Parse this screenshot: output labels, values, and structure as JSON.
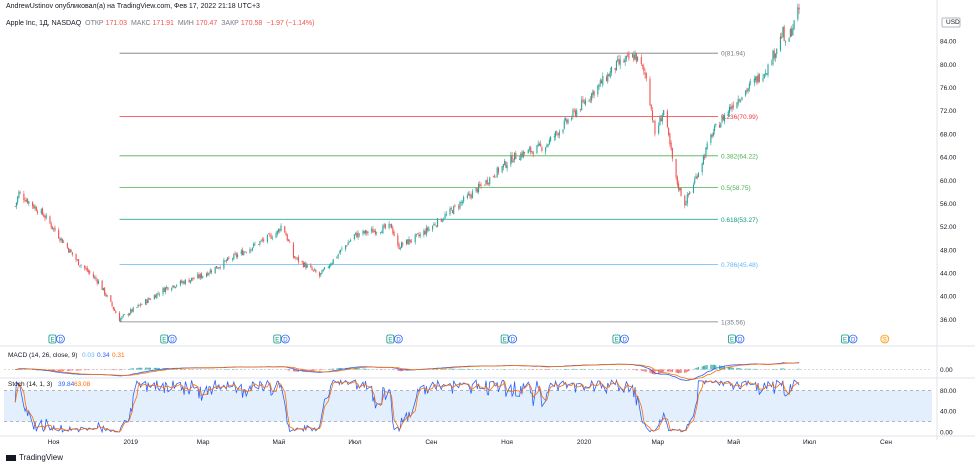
{
  "header": {
    "publisher": "AndrewUstinov опубликовал(а) на TradingView.com, Фев 17, 2022 21:18 UTC+3",
    "symbol_line": "Apple Inc, 1Д, NASDAQ",
    "open_label": "ОТКР",
    "open_value": "171.03",
    "high_label": "МАКС",
    "high_value": "171.91",
    "low_label": "МИН",
    "low_value": "170.47",
    "close_label": "ЗАКР",
    "close_value": "170.58",
    "change": "−1.97 (−1.14%)"
  },
  "branding": "TradingView",
  "colors": {
    "up": "#26a69a",
    "down": "#ef5350",
    "macd": "#2962ff",
    "signal": "#ff6d00",
    "stoch_k": "#2962ff",
    "stoch_d": "#ff6d00",
    "stoch_band": "#e3effd"
  },
  "chart_data": [
    {
      "type": "candlestick",
      "title": "Apple Inc, 1Д, NASDAQ",
      "currency": "USD",
      "y_ticks": [
        "36.00",
        "40.00",
        "44.00",
        "48.00",
        "52.00",
        "56.00",
        "60.00",
        "64.00",
        "68.00",
        "72.00",
        "76.00",
        "80.00",
        "84.00"
      ],
      "ylim": [
        34.5,
        88.7
      ],
      "x_ticks": [
        "Ноя",
        "2019",
        "Мар",
        "Май",
        "Июл",
        "Сен",
        "Ноя",
        "2020",
        "Мар",
        "Май",
        "Июл",
        "Сен"
      ],
      "price_anchors": [
        {
          "date": "2018-10-01",
          "price": 55.5
        },
        {
          "date": "2018-10-04",
          "price": 57.8
        },
        {
          "date": "2018-10-24",
          "price": 54.0
        },
        {
          "date": "2018-11-20",
          "price": 46.0
        },
        {
          "date": "2018-12-07",
          "price": 42.5
        },
        {
          "date": "2018-12-24",
          "price": 36.0
        },
        {
          "date": "2019-01-03",
          "price": 37.5
        },
        {
          "date": "2019-01-31",
          "price": 41.5
        },
        {
          "date": "2019-02-28",
          "price": 43.5
        },
        {
          "date": "2019-03-28",
          "price": 47.0
        },
        {
          "date": "2019-04-30",
          "price": 51.0
        },
        {
          "date": "2019-05-04",
          "price": 52.5
        },
        {
          "date": "2019-05-13",
          "price": 46.8
        },
        {
          "date": "2019-06-03",
          "price": 43.5
        },
        {
          "date": "2019-07-01",
          "price": 50.5
        },
        {
          "date": "2019-07-31",
          "price": 52.0
        },
        {
          "date": "2019-08-05",
          "price": 48.5
        },
        {
          "date": "2019-08-23",
          "price": 50.5
        },
        {
          "date": "2019-09-13",
          "price": 54.0
        },
        {
          "date": "2019-10-11",
          "price": 59.0
        },
        {
          "date": "2019-11-06",
          "price": 64.0
        },
        {
          "date": "2019-12-02",
          "price": 66.0
        },
        {
          "date": "2019-12-31",
          "price": 73.0
        },
        {
          "date": "2020-01-29",
          "price": 80.0
        },
        {
          "date": "2020-02-12",
          "price": 81.5
        },
        {
          "date": "2020-02-21",
          "price": 78.0
        },
        {
          "date": "2020-02-28",
          "price": 68.0
        },
        {
          "date": "2020-03-06",
          "price": 72.0
        },
        {
          "date": "2020-03-16",
          "price": 60.0
        },
        {
          "date": "2020-03-23",
          "price": 56.0
        },
        {
          "date": "2020-04-01",
          "price": 60.5
        },
        {
          "date": "2020-04-14",
          "price": 68.0
        },
        {
          "date": "2020-04-30",
          "price": 73.0
        },
        {
          "date": "2020-05-29",
          "price": 79.5
        },
        {
          "date": "2020-06-10",
          "price": 85.5
        },
        {
          "date": "2020-06-12",
          "price": 83.0
        },
        {
          "date": "2020-06-24",
          "price": 90.0
        }
      ],
      "fibonacci": [
        {
          "label": "0(81.94)",
          "price": 81.94,
          "color": "#787b86"
        },
        {
          "label": "0.236(70.99)",
          "price": 70.99,
          "color": "#f23645"
        },
        {
          "label": "0.382(64.22)",
          "price": 64.22,
          "color": "#4caf50"
        },
        {
          "label": "0.5(58.75)",
          "price": 58.75,
          "color": "#4caf50"
        },
        {
          "label": "0.618(53.27)",
          "price": 53.27,
          "color": "#089981"
        },
        {
          "label": "0.786(45.48)",
          "price": 45.48,
          "color": "#64b5f6"
        },
        {
          "label": "1(35.56)",
          "price": 35.56,
          "color": "#787b86"
        }
      ],
      "fib_start_date": "2018-12-24",
      "events": [
        {
          "date": "2018-10-31",
          "markers": [
            "E",
            "D"
          ]
        },
        {
          "date": "2019-01-29",
          "markers": [
            "E",
            "D"
          ]
        },
        {
          "date": "2019-04-30",
          "markers": [
            "E",
            "D"
          ]
        },
        {
          "date": "2019-07-30",
          "markers": [
            "E",
            "D"
          ]
        },
        {
          "date": "2019-10-30",
          "markers": [
            "E",
            "D"
          ]
        },
        {
          "date": "2020-01-28",
          "markers": [
            "E",
            "D"
          ]
        },
        {
          "date": "2020-04-30",
          "markers": [
            "E",
            "D"
          ]
        },
        {
          "date": "2020-07-30",
          "markers": [
            "E",
            "D"
          ]
        },
        {
          "date": "2020-08-31",
          "markers": [
            "S"
          ]
        }
      ]
    },
    {
      "type": "line",
      "title": "MACD (14, 26, close, 9)",
      "title_values": [
        "0.03",
        "0.34",
        "0.31"
      ],
      "y_ticks": [
        "0.00"
      ]
    },
    {
      "type": "line",
      "title": "Stoch (14, 1, 3)",
      "title_values": [
        "39.84",
        "63.08"
      ],
      "y_ticks": [
        "80.00",
        "40.00",
        "0.00"
      ],
      "ylim": [
        0,
        100
      ],
      "band": [
        20,
        80
      ]
    }
  ]
}
